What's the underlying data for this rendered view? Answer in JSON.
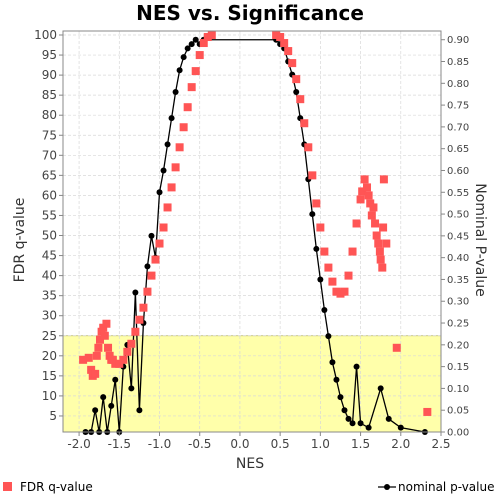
{
  "chart_data": {
    "type": "scatter",
    "title": "NES vs. Significance",
    "xlabel": "NES",
    "ylabel_left": "FDR q-value",
    "ylabel_right": "Nominal P-value",
    "xlim": [
      -2.2,
      2.5
    ],
    "ylim_left": [
      1,
      101
    ],
    "ylim_right": [
      0,
      0.92
    ],
    "x_ticks": [
      "-2.0",
      "-1.5",
      "-1.0",
      "-0.5",
      "0.0",
      "0.5",
      "1.0",
      "1.5",
      "2.0",
      "2.5"
    ],
    "y_left_ticks": [
      "5",
      "10",
      "15",
      "20",
      "25",
      "30",
      "35",
      "40",
      "45",
      "50",
      "55",
      "60",
      "65",
      "70",
      "75",
      "80",
      "85",
      "90",
      "95",
      "100"
    ],
    "y_right_ticks": [
      "0.00",
      "0.05",
      "0.10",
      "0.15",
      "0.20",
      "0.25",
      "0.30",
      "0.35",
      "0.40",
      "0.45",
      "0.50",
      "0.55",
      "0.60",
      "0.65",
      "0.70",
      "0.75",
      "0.80",
      "0.85",
      "0.90"
    ],
    "grid": true,
    "highlight_region": {
      "y_max": 25,
      "color": "#ffffaa"
    },
    "legend": {
      "placement": "bottom",
      "entries": [
        "FDR q-value",
        "nominal p-value"
      ]
    },
    "series": [
      {
        "name": "FDR q-value",
        "axis": "left",
        "color": "#ff5555",
        "marker": "square",
        "points": [
          [
            -1.95,
            19
          ],
          [
            -1.88,
            19.5
          ],
          [
            -1.85,
            16.5
          ],
          [
            -1.83,
            15
          ],
          [
            -1.8,
            15.5
          ],
          [
            -1.78,
            20
          ],
          [
            -1.76,
            22
          ],
          [
            -1.74,
            24
          ],
          [
            -1.72,
            26
          ],
          [
            -1.7,
            27
          ],
          [
            -1.68,
            25
          ],
          [
            -1.66,
            28
          ],
          [
            -1.64,
            22
          ],
          [
            -1.62,
            20
          ],
          [
            -1.6,
            19
          ],
          [
            -1.58,
            19
          ],
          [
            -1.55,
            18
          ],
          [
            -1.5,
            18
          ],
          [
            -1.45,
            19
          ],
          [
            -1.4,
            21
          ],
          [
            -1.35,
            23
          ],
          [
            -1.3,
            26
          ],
          [
            -1.25,
            29
          ],
          [
            -1.2,
            32
          ],
          [
            -1.15,
            36
          ],
          [
            -1.1,
            40
          ],
          [
            -1.05,
            44
          ],
          [
            -1.0,
            48
          ],
          [
            -0.95,
            52
          ],
          [
            -0.9,
            57
          ],
          [
            -0.85,
            62
          ],
          [
            -0.8,
            67
          ],
          [
            -0.75,
            72
          ],
          [
            -0.7,
            77
          ],
          [
            -0.65,
            82
          ],
          [
            -0.6,
            87
          ],
          [
            -0.55,
            91
          ],
          [
            -0.5,
            95
          ],
          [
            -0.45,
            98
          ],
          [
            -0.4,
            99.5
          ],
          [
            -0.35,
            100
          ],
          [
            0.45,
            100
          ],
          [
            0.5,
            99.5
          ],
          [
            0.55,
            98
          ],
          [
            0.6,
            96
          ],
          [
            0.65,
            93
          ],
          [
            0.7,
            89
          ],
          [
            0.75,
            84
          ],
          [
            0.8,
            78
          ],
          [
            0.85,
            72
          ],
          [
            0.9,
            65
          ],
          [
            0.95,
            58
          ],
          [
            1.0,
            52
          ],
          [
            1.05,
            46
          ],
          [
            1.1,
            42
          ],
          [
            1.15,
            38.5
          ],
          [
            1.2,
            36
          ],
          [
            1.25,
            35.5
          ],
          [
            1.3,
            36
          ],
          [
            1.35,
            40
          ],
          [
            1.4,
            46
          ],
          [
            1.45,
            53
          ],
          [
            1.5,
            59
          ],
          [
            1.52,
            61
          ],
          [
            1.55,
            64
          ],
          [
            1.58,
            62
          ],
          [
            1.6,
            60
          ],
          [
            1.62,
            58
          ],
          [
            1.64,
            55
          ],
          [
            1.66,
            57
          ],
          [
            1.68,
            53
          ],
          [
            1.7,
            50
          ],
          [
            1.72,
            48
          ],
          [
            1.74,
            46
          ],
          [
            1.75,
            44
          ],
          [
            1.77,
            42
          ],
          [
            1.78,
            52
          ],
          [
            1.79,
            64
          ],
          [
            1.82,
            48
          ],
          [
            1.95,
            22
          ],
          [
            2.33,
            6
          ]
        ]
      },
      {
        "name": "nominal p-value",
        "axis": "right",
        "color": "#000000",
        "marker": "circle",
        "points": [
          [
            -1.92,
            0.0
          ],
          [
            -1.85,
            0.0
          ],
          [
            -1.8,
            0.05
          ],
          [
            -1.75,
            0.0
          ],
          [
            -1.7,
            0.08
          ],
          [
            -1.65,
            0.0
          ],
          [
            -1.6,
            0.06
          ],
          [
            -1.55,
            0.12
          ],
          [
            -1.5,
            0.0
          ],
          [
            -1.45,
            0.15
          ],
          [
            -1.4,
            0.2
          ],
          [
            -1.35,
            0.1
          ],
          [
            -1.3,
            0.32
          ],
          [
            -1.25,
            0.05
          ],
          [
            -1.2,
            0.25
          ],
          [
            -1.15,
            0.38
          ],
          [
            -1.1,
            0.45
          ],
          [
            -1.05,
            0.4
          ],
          [
            -1.0,
            0.55
          ],
          [
            -0.95,
            0.6
          ],
          [
            -0.9,
            0.66
          ],
          [
            -0.85,
            0.72
          ],
          [
            -0.8,
            0.78
          ],
          [
            -0.75,
            0.83
          ],
          [
            -0.7,
            0.86
          ],
          [
            -0.65,
            0.88
          ],
          [
            -0.6,
            0.89
          ],
          [
            -0.55,
            0.9
          ],
          [
            -0.5,
            0.89
          ],
          [
            -0.45,
            0.9
          ],
          [
            0.45,
            0.9
          ],
          [
            0.5,
            0.89
          ],
          [
            0.55,
            0.88
          ],
          [
            0.6,
            0.85
          ],
          [
            0.65,
            0.82
          ],
          [
            0.7,
            0.78
          ],
          [
            0.75,
            0.72
          ],
          [
            0.8,
            0.66
          ],
          [
            0.85,
            0.58
          ],
          [
            0.9,
            0.5
          ],
          [
            0.95,
            0.42
          ],
          [
            1.0,
            0.35
          ],
          [
            1.05,
            0.28
          ],
          [
            1.1,
            0.22
          ],
          [
            1.15,
            0.16
          ],
          [
            1.2,
            0.12
          ],
          [
            1.25,
            0.08
          ],
          [
            1.3,
            0.05
          ],
          [
            1.35,
            0.03
          ],
          [
            1.4,
            0.02
          ],
          [
            1.45,
            0.15
          ],
          [
            1.5,
            0.02
          ],
          [
            1.6,
            0.01
          ],
          [
            1.75,
            0.1
          ],
          [
            1.85,
            0.03
          ],
          [
            2.0,
            0.01
          ],
          [
            2.3,
            0.0
          ]
        ]
      }
    ]
  }
}
